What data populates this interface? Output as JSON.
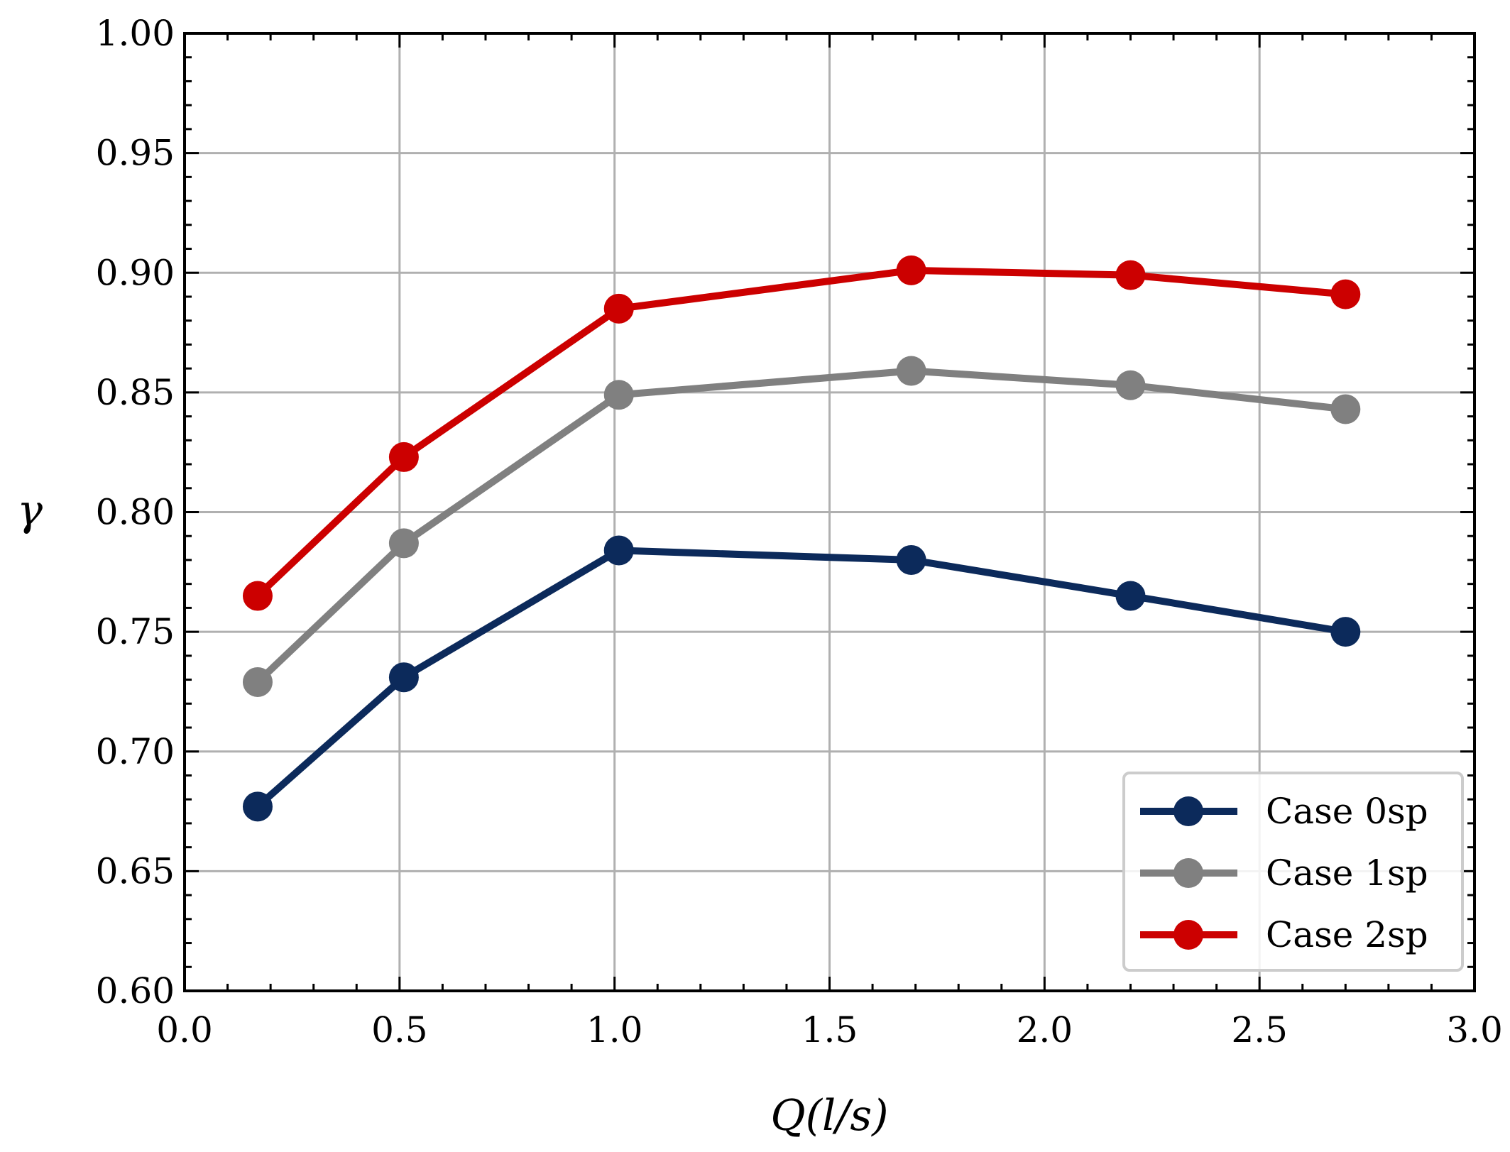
{
  "chart_data": {
    "type": "line",
    "title": "",
    "xlabel": "Q(l/s)",
    "ylabel": "γ",
    "xlim": [
      0.0,
      3.0
    ],
    "ylim": [
      0.6,
      1.0
    ],
    "xticks": [
      "0.0",
      "0.5",
      "1.0",
      "1.5",
      "2.0",
      "2.5",
      "3.0"
    ],
    "yticks": [
      "0.60",
      "0.65",
      "0.70",
      "0.75",
      "0.80",
      "0.85",
      "0.90",
      "0.95",
      "1.00"
    ],
    "grid": true,
    "legend_position": "lower-right",
    "x": [
      0.17,
      0.51,
      1.01,
      1.69,
      2.2,
      2.7
    ],
    "series": [
      {
        "name": "Case 0sp",
        "color": "#0c2a5b",
        "values": [
          0.677,
          0.731,
          0.784,
          0.78,
          0.765,
          0.75
        ]
      },
      {
        "name": "Case 1sp",
        "color": "#808080",
        "values": [
          0.729,
          0.787,
          0.849,
          0.859,
          0.853,
          0.843
        ]
      },
      {
        "name": "Case 2sp",
        "color": "#cc0000",
        "values": [
          0.765,
          0.823,
          0.885,
          0.901,
          0.899,
          0.891
        ]
      }
    ]
  }
}
